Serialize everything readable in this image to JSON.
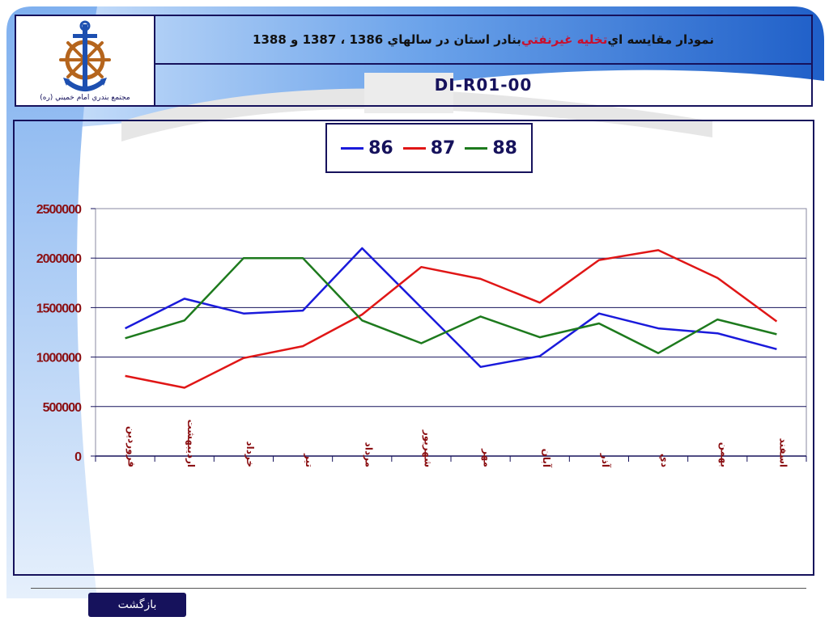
{
  "header": {
    "logo_caption": "مجتمع بندري امام خميني (ره)",
    "title_part1": "نمودار مقايسه اي ",
    "title_highlight": "تخليه غيرنفتي",
    "title_part2": " بنادر استان در سالهاي 1386 ، 1387 و 1388",
    "code": "DI-R01-00"
  },
  "legend": {
    "items": [
      {
        "label": "86",
        "color": "#1a1adb"
      },
      {
        "label": "87",
        "color": "#e01616"
      },
      {
        "label": "88",
        "color": "#1d7a1d"
      }
    ]
  },
  "chart_data": {
    "type": "line",
    "title": "",
    "xlabel": "",
    "ylabel": "",
    "ylim": [
      0,
      2500000
    ],
    "yticks": [
      "0",
      "500000",
      "1000000",
      "1500000",
      "2000000",
      "2500000"
    ],
    "grid": true,
    "legend_position": "top-center",
    "categories": [
      "فروردين",
      "ارديبهشت",
      "خرداد",
      "تير",
      "مرداد",
      "شهريور",
      "مهر",
      "آبان",
      "آذر",
      "دي",
      "بهمن",
      "اسفند"
    ],
    "series": [
      {
        "name": "86",
        "color": "#1a1adb",
        "values": [
          1290000,
          1590000,
          1440000,
          1470000,
          2100000,
          1500000,
          900000,
          1010000,
          1440000,
          1290000,
          1240000,
          1080000
        ]
      },
      {
        "name": "87",
        "color": "#e01616",
        "values": [
          810000,
          690000,
          990000,
          1110000,
          1430000,
          1910000,
          1790000,
          1550000,
          1980000,
          2080000,
          1800000,
          1360000
        ]
      },
      {
        "name": "88",
        "color": "#1d7a1d",
        "values": [
          1190000,
          1370000,
          2000000,
          2000000,
          1370000,
          1140000,
          1410000,
          1200000,
          1340000,
          1040000,
          1380000,
          1230000
        ]
      }
    ]
  },
  "footer": {
    "back_label": "بازگشت"
  }
}
